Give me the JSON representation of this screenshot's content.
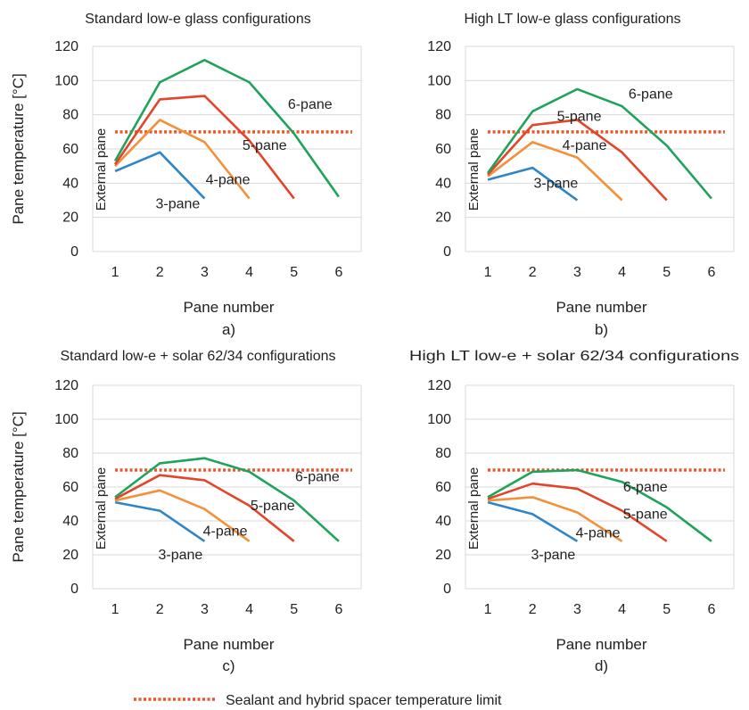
{
  "figure": {
    "legend_label": "Sealant and hybrid spacer temperature limit"
  },
  "colors": {
    "3-pane": "#2E86C9",
    "4-pane": "#F2913A",
    "5-pane": "#E2462A",
    "6-pane": "#1FA35A",
    "limit": "#E8572A",
    "grid": "#D9D9D9"
  },
  "chart_data": [
    {
      "type": "line",
      "title": "Standard low-e glass configurations",
      "caption": "a)",
      "xlabel": "Pane number",
      "ylabel": "Pane temperature [°C]",
      "x": [
        1,
        2,
        3,
        4,
        5,
        6
      ],
      "ylim": [
        0,
        120
      ],
      "yticks": [
        0,
        20,
        40,
        60,
        80,
        100,
        120
      ],
      "grid": true,
      "limit_line": 70,
      "side_label": "External pane",
      "series": [
        {
          "name": "3-pane",
          "x": [
            1,
            2,
            3
          ],
          "values": [
            47,
            58,
            31
          ]
        },
        {
          "name": "4-pane",
          "x": [
            1,
            2,
            3,
            4
          ],
          "values": [
            50,
            77,
            64,
            31
          ]
        },
        {
          "name": "5-pane",
          "x": [
            1,
            2,
            3,
            4,
            5
          ],
          "values": [
            51,
            89,
            91,
            65,
            31
          ]
        },
        {
          "name": "6-pane",
          "x": [
            1,
            2,
            3,
            4,
            5,
            6
          ],
          "values": [
            53,
            99,
            112,
            99,
            69,
            32
          ]
        }
      ]
    },
    {
      "type": "line",
      "title": "High LT low-e glass configurations",
      "caption": "b)",
      "xlabel": "Pane number",
      "ylabel": "",
      "x": [
        1,
        2,
        3,
        4,
        5,
        6
      ],
      "ylim": [
        0,
        120
      ],
      "yticks": [
        0,
        20,
        40,
        60,
        80,
        100,
        120
      ],
      "grid": true,
      "limit_line": 70,
      "side_label": "External pane",
      "series": [
        {
          "name": "3-pane",
          "x": [
            1,
            2,
            3
          ],
          "values": [
            42,
            49,
            30
          ]
        },
        {
          "name": "4-pane",
          "x": [
            1,
            2,
            3,
            4
          ],
          "values": [
            44,
            64,
            55,
            30
          ]
        },
        {
          "name": "5-pane",
          "x": [
            1,
            2,
            3,
            4,
            5
          ],
          "values": [
            45,
            74,
            77,
            58,
            30
          ]
        },
        {
          "name": "6-pane",
          "x": [
            1,
            2,
            3,
            4,
            5,
            6
          ],
          "values": [
            46,
            82,
            95,
            85,
            62,
            31
          ]
        }
      ]
    },
    {
      "type": "line",
      "title": "Standard low-e + solar 62/34 configurations",
      "caption": "c)",
      "xlabel": "Pane number",
      "ylabel": "Pane temperature [°C]",
      "x": [
        1,
        2,
        3,
        4,
        5,
        6
      ],
      "ylim": [
        0,
        120
      ],
      "yticks": [
        0,
        20,
        40,
        60,
        80,
        100,
        120
      ],
      "grid": true,
      "limit_line": 70,
      "side_label": "External pane",
      "series": [
        {
          "name": "3-pane",
          "x": [
            1,
            2,
            3
          ],
          "values": [
            51,
            46,
            28
          ]
        },
        {
          "name": "4-pane",
          "x": [
            1,
            2,
            3,
            4
          ],
          "values": [
            52,
            58,
            47,
            28
          ]
        },
        {
          "name": "5-pane",
          "x": [
            1,
            2,
            3,
            4,
            5
          ],
          "values": [
            53,
            67,
            64,
            49,
            28
          ]
        },
        {
          "name": "6-pane",
          "x": [
            1,
            2,
            3,
            4,
            5,
            6
          ],
          "values": [
            54,
            74,
            77,
            69,
            52,
            28
          ]
        }
      ]
    },
    {
      "type": "line",
      "title": "High LT low-e + solar 62/34 configurations",
      "caption": "d)",
      "xlabel": "Pane number",
      "ylabel": "",
      "x": [
        1,
        2,
        3,
        4,
        5,
        6
      ],
      "ylim": [
        0,
        120
      ],
      "yticks": [
        0,
        20,
        40,
        60,
        80,
        100,
        120
      ],
      "grid": true,
      "limit_line": 70,
      "side_label": "External pane",
      "series": [
        {
          "name": "3-pane",
          "x": [
            1,
            2,
            3
          ],
          "values": [
            51,
            44,
            28
          ]
        },
        {
          "name": "4-pane",
          "x": [
            1,
            2,
            3,
            4
          ],
          "values": [
            52,
            54,
            45,
            28
          ]
        },
        {
          "name": "5-pane",
          "x": [
            1,
            2,
            3,
            4,
            5
          ],
          "values": [
            53,
            62,
            59,
            46,
            28
          ]
        },
        {
          "name": "6-pane",
          "x": [
            1,
            2,
            3,
            4,
            5,
            6
          ],
          "values": [
            54,
            69,
            70,
            63,
            48,
            28
          ]
        }
      ]
    }
  ]
}
